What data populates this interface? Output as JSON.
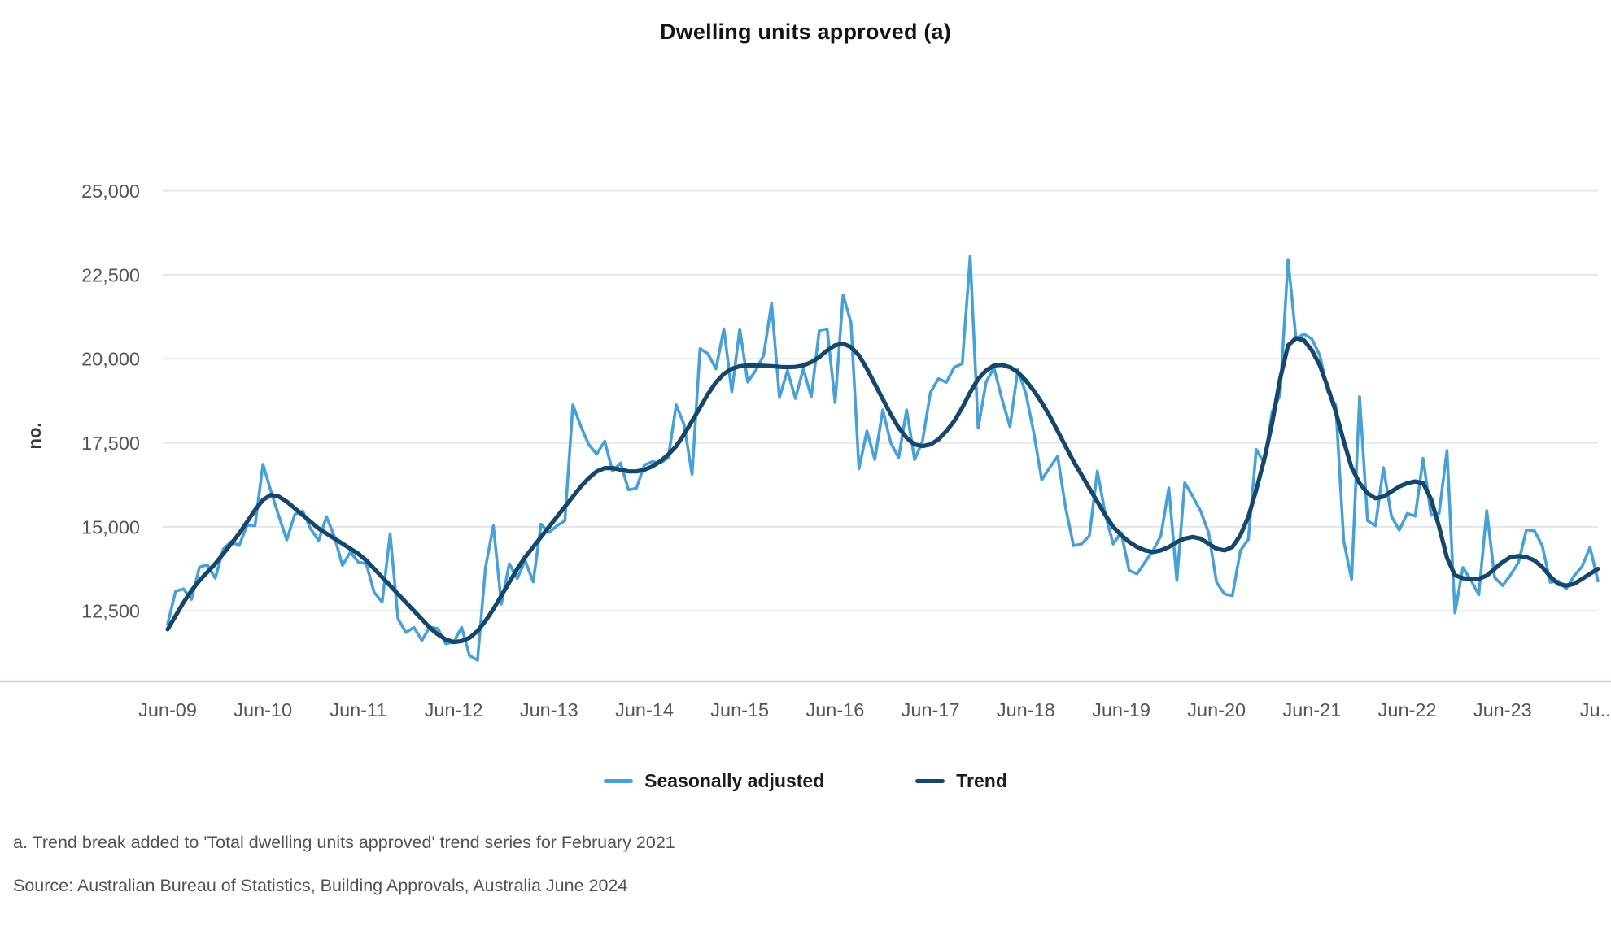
{
  "header": {
    "title": "Dwelling units approved (a)"
  },
  "chart": {
    "y_axis": {
      "title": "no.",
      "tick_values": [
        25000,
        22500,
        20000,
        17500,
        15000,
        12500
      ],
      "tick_labels": [
        "25,000",
        "22,500",
        "20,000",
        "17,500",
        "15,000",
        "12,500"
      ]
    },
    "x_axis": {
      "tick_labels": [
        "Jun-09",
        "Jun-10",
        "Jun-11",
        "Jun-12",
        "Jun-13",
        "Jun-14",
        "Jun-15",
        "Jun-16",
        "Jun-17",
        "Jun-18",
        "Jun-19",
        "Jun-20",
        "Jun-21",
        "Jun-22",
        "Jun-23",
        "Ju..."
      ],
      "months_per_tick": 12
    },
    "legend": [
      {
        "label": "Seasonally adjusted",
        "color": "#48a1d6"
      },
      {
        "label": "Trend",
        "color": "#16476a"
      }
    ],
    "colors": {
      "gridline": "#e6e6e8",
      "axis_line": "#c4d1e3",
      "tick_text": "#565656",
      "title_text": "#141414"
    }
  },
  "chart_data": {
    "type": "line",
    "title": "Dwelling units approved (a)",
    "xlabel": "",
    "ylabel": "no.",
    "x_start": "Jun-2009",
    "x_end": "Jun-2024",
    "frequency": "monthly",
    "ylim": [
      10400,
      25000
    ],
    "grid": "horizontal",
    "legend_position": "bottom",
    "series": [
      {
        "name": "Seasonally adjusted",
        "color": "#48a1d6",
        "values": [
          12100,
          13080,
          13150,
          12840,
          13800,
          13870,
          13470,
          14340,
          14560,
          14440,
          15050,
          15030,
          16860,
          16060,
          15320,
          14610,
          15370,
          15470,
          14940,
          14590,
          15300,
          14700,
          13850,
          14250,
          13950,
          13900,
          13050,
          12760,
          14790,
          12260,
          11860,
          12010,
          11620,
          12020,
          11970,
          11520,
          11570,
          12010,
          11170,
          11030,
          13790,
          15030,
          12700,
          13900,
          13460,
          14000,
          13360,
          15080,
          14830,
          15030,
          15180,
          18630,
          17990,
          17450,
          17160,
          17550,
          16650,
          16900,
          16100,
          16150,
          16840,
          16940,
          16900,
          17050,
          18630,
          18040,
          16560,
          20300,
          20150,
          19700,
          20890,
          19020,
          20890,
          19310,
          19650,
          20100,
          21650,
          18850,
          19650,
          18820,
          19700,
          18870,
          20840,
          20890,
          18700,
          21900,
          21080,
          16730,
          17850,
          17000,
          18480,
          17500,
          17060,
          18480,
          17000,
          17550,
          19000,
          19410,
          19300,
          19750,
          19850,
          23050,
          17940,
          19310,
          19730,
          18800,
          17980,
          19680,
          18970,
          17800,
          16400,
          16760,
          17100,
          15580,
          14440,
          14490,
          14730,
          16660,
          15370,
          14490,
          14830,
          13700,
          13600,
          13950,
          14290,
          14730,
          16160,
          13400,
          16310,
          15910,
          15470,
          14830,
          13350,
          13000,
          12950,
          14290,
          14630,
          17300,
          16900,
          18430,
          18920,
          22950,
          20600,
          20740,
          20590,
          20100,
          19020,
          18620,
          14580,
          13440,
          18870,
          15180,
          15030,
          16760,
          15320,
          14900,
          15400,
          15320,
          17040,
          15340,
          15400,
          17270,
          12440,
          13790,
          13420,
          12980,
          15480,
          13490,
          13250,
          13570,
          13940,
          14910,
          14880,
          14430,
          13350,
          13390,
          13150,
          13540,
          13820,
          14390,
          13390
        ]
      },
      {
        "name": "Trend",
        "color": "#16476a",
        "values": [
          11950,
          12350,
          12750,
          13100,
          13400,
          13650,
          13900,
          14200,
          14500,
          14800,
          15150,
          15500,
          15800,
          15950,
          15900,
          15750,
          15550,
          15350,
          15150,
          14950,
          14800,
          14650,
          14500,
          14350,
          14200,
          14000,
          13750,
          13500,
          13250,
          13000,
          12750,
          12500,
          12250,
          12000,
          11800,
          11650,
          11570,
          11600,
          11700,
          11900,
          12200,
          12550,
          12950,
          13350,
          13750,
          14100,
          14400,
          14700,
          15000,
          15300,
          15600,
          15900,
          16200,
          16450,
          16650,
          16750,
          16750,
          16700,
          16650,
          16650,
          16700,
          16800,
          16950,
          17150,
          17400,
          17750,
          18150,
          18550,
          18950,
          19300,
          19550,
          19700,
          19780,
          19800,
          19800,
          19790,
          19780,
          19760,
          19750,
          19760,
          19800,
          19900,
          20050,
          20250,
          20400,
          20450,
          20350,
          20100,
          19700,
          19250,
          18800,
          18350,
          17950,
          17650,
          17450,
          17400,
          17450,
          17600,
          17850,
          18150,
          18550,
          19000,
          19400,
          19650,
          19800,
          19820,
          19750,
          19600,
          19350,
          19050,
          18700,
          18300,
          17850,
          17400,
          16950,
          16550,
          16150,
          15750,
          15350,
          15000,
          14750,
          14550,
          14400,
          14300,
          14250,
          14300,
          14400,
          14550,
          14650,
          14700,
          14650,
          14500,
          14350,
          14300,
          14400,
          14750,
          15300,
          16100,
          17000,
          18100,
          19400,
          20400,
          20610,
          20550,
          20250,
          19800,
          19150,
          18430,
          17550,
          16760,
          16300,
          16000,
          15850,
          15900,
          16050,
          16200,
          16300,
          16350,
          16300,
          15820,
          15000,
          14080,
          13560,
          13470,
          13450,
          13450,
          13550,
          13750,
          13950,
          14100,
          14130,
          14100,
          14000,
          13800,
          13520,
          13300,
          13250,
          13300,
          13450,
          13600,
          13750
        ]
      }
    ]
  },
  "footnotes": {
    "note_a": "a. Trend break added to 'Total dwelling units approved' trend series for February 2021",
    "source": "Source: Australian Bureau of Statistics, Building Approvals, Australia June 2024"
  }
}
